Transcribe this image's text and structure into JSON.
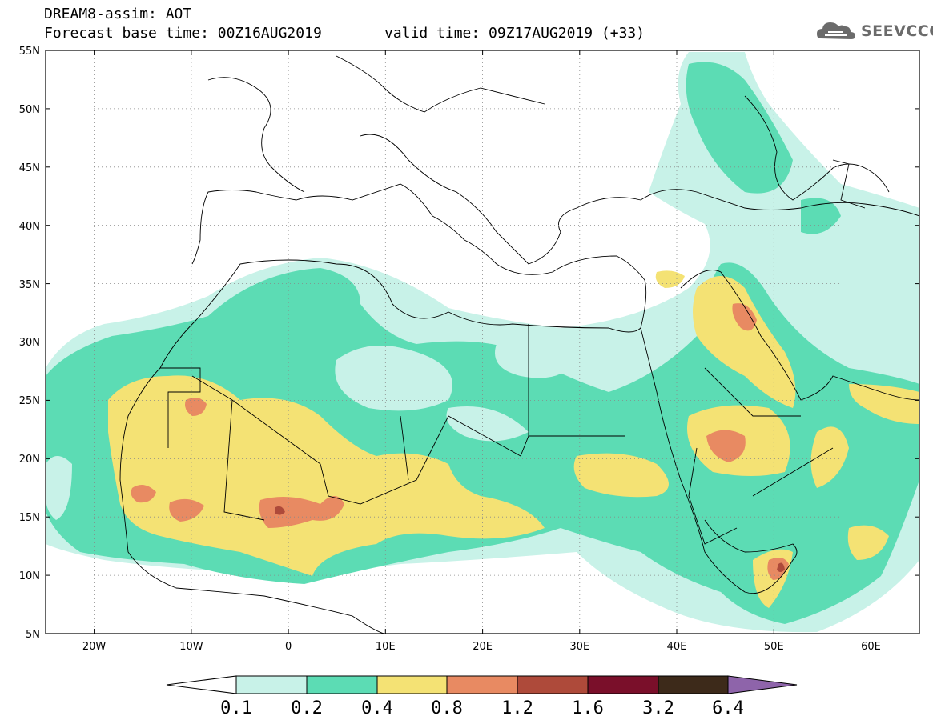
{
  "header": {
    "title_line1": "DREAM8-assim: AOT",
    "base_time": "Forecast base time: 00Z16AUG2019",
    "valid_time": "valid time: 09Z17AUG2019 (+33)"
  },
  "logo": {
    "text": "SEEVCCC",
    "icon": "cloud-icon"
  },
  "map": {
    "region": "North Africa, Middle East and Europe",
    "lon_range": [
      -25,
      65
    ],
    "lat_range": [
      5,
      55
    ],
    "lat_labels": [
      "55N",
      "50N",
      "45N",
      "40N",
      "35N",
      "30N",
      "25N",
      "20N",
      "15N",
      "10N",
      "5N"
    ],
    "lon_labels": [
      "20W",
      "10W",
      "0",
      "10E",
      "20E",
      "30E",
      "40E",
      "50E",
      "60E"
    ],
    "gridlines": "dotted"
  },
  "colorbar": {
    "labels": [
      "0.1",
      "0.2",
      "0.4",
      "0.8",
      "1.2",
      "1.6",
      "3.2",
      "6.4"
    ],
    "colors": [
      "#ffffff",
      "#c8f2e8",
      "#5cdcb4",
      "#f4e274",
      "#e88a62",
      "#ae4a3a",
      "#7a0f2a",
      "#3d2a1a",
      "#8e64aa"
    ]
  },
  "colors": {
    "level_0_1": "#c8f2e8",
    "level_0_2": "#5cdcb4",
    "level_0_4": "#f4e274",
    "level_0_8": "#e88a62",
    "level_1_2": "#ae4a3a"
  }
}
